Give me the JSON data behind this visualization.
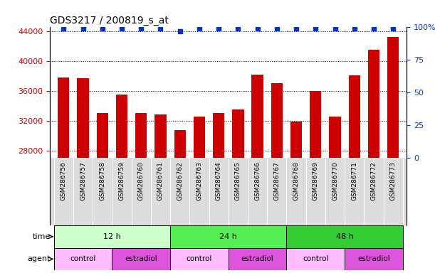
{
  "title": "GDS3217 / 200819_s_at",
  "samples": [
    "GSM286756",
    "GSM286757",
    "GSM286758",
    "GSM286759",
    "GSM286760",
    "GSM286761",
    "GSM286762",
    "GSM286763",
    "GSM286764",
    "GSM286765",
    "GSM286766",
    "GSM286767",
    "GSM286768",
    "GSM286769",
    "GSM286770",
    "GSM286771",
    "GSM286772",
    "GSM286773"
  ],
  "counts": [
    37800,
    37700,
    33000,
    35500,
    33000,
    32800,
    30700,
    32500,
    33000,
    33500,
    38200,
    37000,
    31900,
    36000,
    32500,
    38100,
    41500,
    43200
  ],
  "percentile_ranks": [
    99,
    99,
    99,
    99,
    99,
    99,
    97,
    99,
    99,
    99,
    99,
    99,
    99,
    99,
    99,
    99,
    99,
    99
  ],
  "bar_color": "#cc0000",
  "dot_color": "#0033cc",
  "ylim_left": [
    27000,
    44500
  ],
  "ylim_right": [
    0,
    100
  ],
  "yticks_left": [
    28000,
    32000,
    36000,
    40000,
    44000
  ],
  "yticks_right": [
    0,
    25,
    50,
    75,
    100
  ],
  "ytick_labels_right": [
    "0",
    "25",
    "50",
    "75",
    "100%"
  ],
  "grid_color": "#000000",
  "time_groups": [
    {
      "label": "12 h",
      "start": 0,
      "end": 6,
      "color": "#ccffcc"
    },
    {
      "label": "24 h",
      "start": 6,
      "end": 12,
      "color": "#55ee55"
    },
    {
      "label": "48 h",
      "start": 12,
      "end": 18,
      "color": "#33cc33"
    }
  ],
  "agent_groups": [
    {
      "label": "control",
      "start": 0,
      "end": 3,
      "color": "#ffbbff"
    },
    {
      "label": "estradiol",
      "start": 3,
      "end": 6,
      "color": "#dd55dd"
    },
    {
      "label": "control",
      "start": 6,
      "end": 9,
      "color": "#ffbbff"
    },
    {
      "label": "estradiol",
      "start": 9,
      "end": 12,
      "color": "#dd55dd"
    },
    {
      "label": "control",
      "start": 12,
      "end": 15,
      "color": "#ffbbff"
    },
    {
      "label": "estradiol",
      "start": 15,
      "end": 18,
      "color": "#dd55dd"
    }
  ],
  "legend_count_color": "#cc0000",
  "legend_dot_color": "#0033cc",
  "tick_label_color_left": "#cc0000",
  "tick_label_color_right": "#0033cc",
  "background_color": "#ffffff",
  "xtick_bg_color": "#dddddd",
  "bar_width": 0.6
}
